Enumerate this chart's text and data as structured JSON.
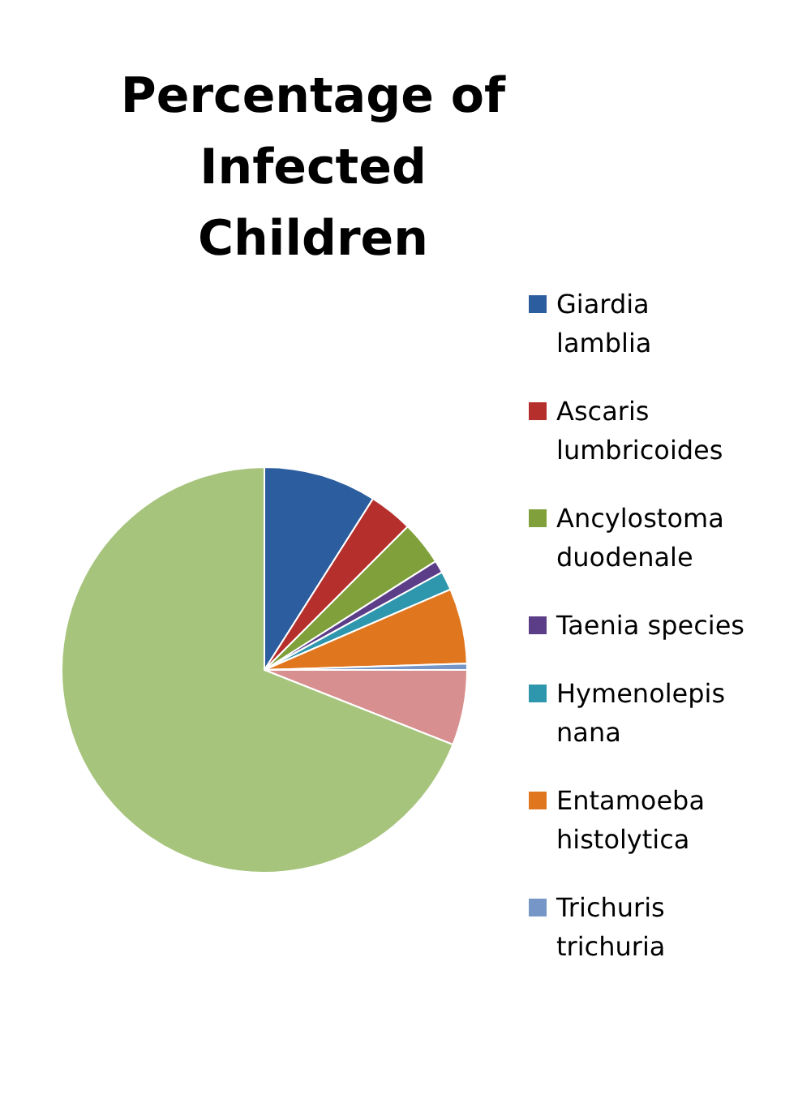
{
  "chart_data": {
    "type": "pie",
    "title": "Percentage of Infected Children",
    "categories": [
      "Giardia lamblia",
      "Ascaris lumbricoides",
      "Ancylostoma duodenale",
      "Taenia species",
      "Hymenolepis nana",
      "Entamoeba histolytica",
      "Trichuris trichuria",
      null,
      null
    ],
    "values": [
      9,
      3.5,
      3.5,
      1,
      1.5,
      6,
      0.5,
      6,
      69
    ],
    "colors": [
      "#2c5d9e",
      "#b5302d",
      "#7fa03a",
      "#5c3d88",
      "#2e97ad",
      "#e0771f",
      "#7596c6",
      "#d88f8f",
      "#a6c47c"
    ],
    "legend": "right"
  }
}
